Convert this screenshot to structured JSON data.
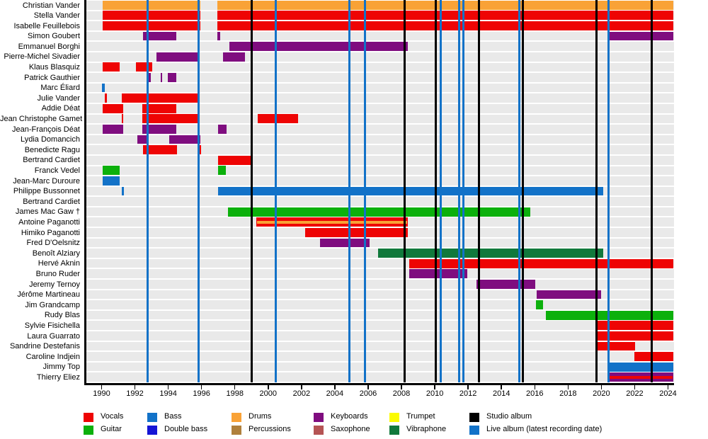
{
  "chart_data": {
    "type": "timeline",
    "x_axis": {
      "start": 1989.0,
      "end": 2024.4,
      "tick_years": [
        1990,
        1992,
        1994,
        1996,
        1998,
        2000,
        2002,
        2004,
        2006,
        2008,
        2010,
        2012,
        2014,
        2016,
        2018,
        2020,
        2022,
        2024
      ]
    },
    "roles": {
      "vocals": {
        "label": "Vocals",
        "color": "#ee0404"
      },
      "guitar": {
        "label": "Guitar",
        "color": "#0cb00c"
      },
      "bass": {
        "label": "Bass",
        "color": "#1272c8"
      },
      "double_bass": {
        "label": "Double bass",
        "color": "#1515d5"
      },
      "drums": {
        "label": "Drums",
        "color": "#f9a236"
      },
      "percussions": {
        "label": "Percussions",
        "color": "#b0803c"
      },
      "keyboards": {
        "label": "Keyboards",
        "color": "#7f0d7f"
      },
      "saxophone": {
        "label": "Saxophone",
        "color": "#b55454"
      },
      "trumpet": {
        "label": "Trumpet",
        "color": "#fbfb00"
      },
      "vibraphone": {
        "label": "Vibraphone",
        "color": "#11793c"
      }
    },
    "albums": {
      "studio": {
        "label": "Studio album",
        "color": "#000000",
        "years": [
          1999.0,
          2008.18,
          2010.05,
          2012.65,
          2015.3,
          2019.7,
          2023.03
        ]
      },
      "live": {
        "label": "Live album (latest recording date)",
        "color": "#1272c8",
        "years": [
          1992.78,
          1995.82,
          2000.47,
          2004.89,
          2005.81,
          2010.35,
          2011.48,
          2011.7,
          2015.06,
          2020.44
        ]
      }
    },
    "members": [
      {
        "name": "Christian Vander",
        "bars": [
          {
            "from": 1990.06,
            "to": 1995.93,
            "role": "drums"
          },
          {
            "from": 1996.95,
            "to": 2024.3,
            "role": "drums"
          }
        ]
      },
      {
        "name": "Stella Vander",
        "bars": [
          {
            "from": 1990.06,
            "to": 1995.93,
            "role": "vocals"
          },
          {
            "from": 1996.95,
            "to": 2024.3,
            "role": "vocals"
          }
        ]
      },
      {
        "name": "Isabelle Feuillebois",
        "bars": [
          {
            "from": 1990.06,
            "to": 1995.93,
            "role": "vocals"
          },
          {
            "from": 1996.95,
            "to": 2024.3,
            "role": "vocals"
          }
        ]
      },
      {
        "name": "Simon Goubert",
        "bars": [
          {
            "from": 1992.5,
            "to": 1994.48,
            "role": "keyboards"
          },
          {
            "from": 1996.95,
            "to": 1997.12,
            "role": "keyboards"
          },
          {
            "from": 2020.45,
            "to": 2024.3,
            "role": "keyboards"
          }
        ]
      },
      {
        "name": "Emmanuel Borghi",
        "bars": [
          {
            "from": 1997.65,
            "to": 2008.37,
            "role": "keyboards"
          }
        ]
      },
      {
        "name": "Pierre-Michel Sivadier",
        "bars": [
          {
            "from": 1993.28,
            "to": 1995.9,
            "role": "keyboards"
          },
          {
            "from": 1997.3,
            "to": 1998.6,
            "role": "keyboards"
          }
        ]
      },
      {
        "name": "Klaus Blasquiz",
        "bars": [
          {
            "from": 1990.06,
            "to": 1991.07,
            "role": "vocals"
          },
          {
            "from": 1992.05,
            "to": 1993.06,
            "role": "vocals"
          }
        ]
      },
      {
        "name": "Patrick Gauthier",
        "bars": [
          {
            "from": 1992.8,
            "to": 1992.97,
            "role": "keyboards"
          },
          {
            "from": 1993.56,
            "to": 1993.64,
            "role": "keyboards"
          },
          {
            "from": 1993.98,
            "to": 1994.48,
            "role": "keyboards"
          }
        ]
      },
      {
        "name": "Marc Éliard",
        "bars": [
          {
            "from": 1990.0,
            "to": 1990.18,
            "role": "bass"
          }
        ]
      },
      {
        "name": "Julie Vander",
        "bars": [
          {
            "from": 1990.2,
            "to": 1990.3,
            "role": "vocals"
          },
          {
            "from": 1991.19,
            "to": 1995.9,
            "role": "vocals"
          }
        ]
      },
      {
        "name": "Addie Déat",
        "bars": [
          {
            "from": 1990.06,
            "to": 1991.29,
            "role": "vocals"
          },
          {
            "from": 1992.45,
            "to": 1994.48,
            "role": "vocals"
          }
        ]
      },
      {
        "name": "Jean Christophe Gamet",
        "bars": [
          {
            "from": 1991.19,
            "to": 1991.3,
            "role": "vocals"
          },
          {
            "from": 1992.45,
            "to": 1995.9,
            "role": "vocals"
          },
          {
            "from": 1999.35,
            "to": 2001.78,
            "role": "vocals"
          }
        ]
      },
      {
        "name": "Jean-François Déat",
        "bars": [
          {
            "from": 1990.06,
            "to": 1991.29,
            "role": "keyboards"
          },
          {
            "from": 1992.45,
            "to": 1994.48,
            "role": "keyboards"
          },
          {
            "from": 1996.97,
            "to": 1997.5,
            "role": "keyboards"
          }
        ]
      },
      {
        "name": "Lydia Domancich",
        "bars": [
          {
            "from": 1992.15,
            "to": 1992.8,
            "role": "keyboards"
          },
          {
            "from": 1994.05,
            "to": 1995.92,
            "role": "keyboards"
          }
        ]
      },
      {
        "name": "Benedicte Ragu",
        "bars": [
          {
            "from": 1992.5,
            "to": 1994.52,
            "role": "vocals"
          },
          {
            "from": 1995.82,
            "to": 1995.97,
            "role": "vocals"
          }
        ]
      },
      {
        "name": "Bertrand Cardiet",
        "bars": [
          {
            "from": 1996.97,
            "to": 1998.93,
            "role": "vocals"
          }
        ]
      },
      {
        "name": "Franck Vedel",
        "bars": [
          {
            "from": 1990.06,
            "to": 1991.07,
            "role": "guitar"
          },
          {
            "from": 1996.97,
            "to": 1997.45,
            "role": "guitar"
          }
        ]
      },
      {
        "name": "Jean-Marc Duroure",
        "bars": [
          {
            "from": 1990.06,
            "to": 1991.07,
            "role": "bass"
          }
        ]
      },
      {
        "name": "Philippe Bussonnet",
        "bars": [
          {
            "from": 1991.2,
            "to": 1991.33,
            "role": "bass"
          },
          {
            "from": 1996.97,
            "to": 2020.12,
            "role": "bass"
          }
        ]
      },
      {
        "name": "Bertrand Cardiet",
        "bars": []
      },
      {
        "name": "James Mac Gaw  †",
        "bars": [
          {
            "from": 1997.6,
            "to": 2015.72,
            "role": "guitar"
          }
        ]
      },
      {
        "name": "Antoine Paganotti",
        "bars": [
          {
            "from": 1999.3,
            "to": 2008.37,
            "role": "vocals",
            "inset": "drums"
          }
        ]
      },
      {
        "name": "Himiko Paganotti",
        "bars": [
          {
            "from": 2002.2,
            "to": 2008.37,
            "role": "vocals"
          }
        ]
      },
      {
        "name": "Fred D'Oelsnitz",
        "bars": [
          {
            "from": 2003.12,
            "to": 2006.1,
            "role": "keyboards"
          }
        ]
      },
      {
        "name": "Benoît Alziary",
        "bars": [
          {
            "from": 2006.6,
            "to": 2020.1,
            "role": "vibraphone"
          }
        ]
      },
      {
        "name": "Hervé Aknin",
        "bars": [
          {
            "from": 2008.45,
            "to": 2024.3,
            "role": "vocals"
          }
        ]
      },
      {
        "name": "Bruno Ruder",
        "bars": [
          {
            "from": 2008.45,
            "to": 2011.97,
            "role": "keyboards"
          }
        ]
      },
      {
        "name": "Jeremy Ternoy",
        "bars": [
          {
            "from": 2012.5,
            "to": 2016.05,
            "role": "keyboards"
          }
        ]
      },
      {
        "name": "Jérôme Martineau",
        "bars": [
          {
            "from": 2016.1,
            "to": 2019.97,
            "role": "keyboards"
          }
        ]
      },
      {
        "name": "Jim Grandcamp",
        "bars": [
          {
            "from": 2016.08,
            "to": 2016.5,
            "role": "guitar"
          }
        ]
      },
      {
        "name": "Rudy Blas",
        "bars": [
          {
            "from": 2016.65,
            "to": 2024.3,
            "role": "guitar"
          }
        ]
      },
      {
        "name": "Sylvie Fisichella",
        "bars": [
          {
            "from": 2019.7,
            "to": 2024.3,
            "role": "vocals"
          }
        ]
      },
      {
        "name": "Laura Guarrato",
        "bars": [
          {
            "from": 2019.7,
            "to": 2024.3,
            "role": "vocals"
          }
        ]
      },
      {
        "name": "Sandrine Destefanis",
        "bars": [
          {
            "from": 2019.7,
            "to": 2022.03,
            "role": "vocals"
          }
        ]
      },
      {
        "name": "Caroline Indjein",
        "bars": [
          {
            "from": 2021.97,
            "to": 2024.3,
            "role": "vocals"
          }
        ]
      },
      {
        "name": "Jimmy Top",
        "bars": [
          {
            "from": 2020.47,
            "to": 2024.3,
            "role": "bass"
          }
        ]
      },
      {
        "name": "Thierry Eliez",
        "bars": [
          {
            "from": 2020.47,
            "to": 2024.3,
            "role": "keyboards",
            "inset": "vocals"
          }
        ]
      }
    ],
    "legend": {
      "columns": [
        {
          "items": [
            {
              "label": "Vocals",
              "role": "vocals"
            },
            {
              "label": "Guitar",
              "role": "guitar"
            }
          ]
        },
        {
          "items": [
            {
              "label": "Bass",
              "role": "bass"
            },
            {
              "label": "Double bass",
              "role": "double_bass"
            }
          ]
        },
        {
          "items": [
            {
              "label": "Drums",
              "role": "drums"
            },
            {
              "label": "Percussions",
              "role": "percussions"
            }
          ]
        },
        {
          "items": [
            {
              "label": "Keyboards",
              "role": "keyboards"
            },
            {
              "label": "Saxophone",
              "role": "saxophone"
            }
          ]
        },
        {
          "items": [
            {
              "label": "Trumpet",
              "role": "trumpet"
            },
            {
              "label": "Vibraphone",
              "role": "vibraphone"
            }
          ]
        },
        {
          "items": [
            {
              "label": "Studio album",
              "role": "studio_album"
            },
            {
              "label": "Live album (latest recording date)",
              "role": "live_album"
            }
          ]
        }
      ]
    }
  }
}
